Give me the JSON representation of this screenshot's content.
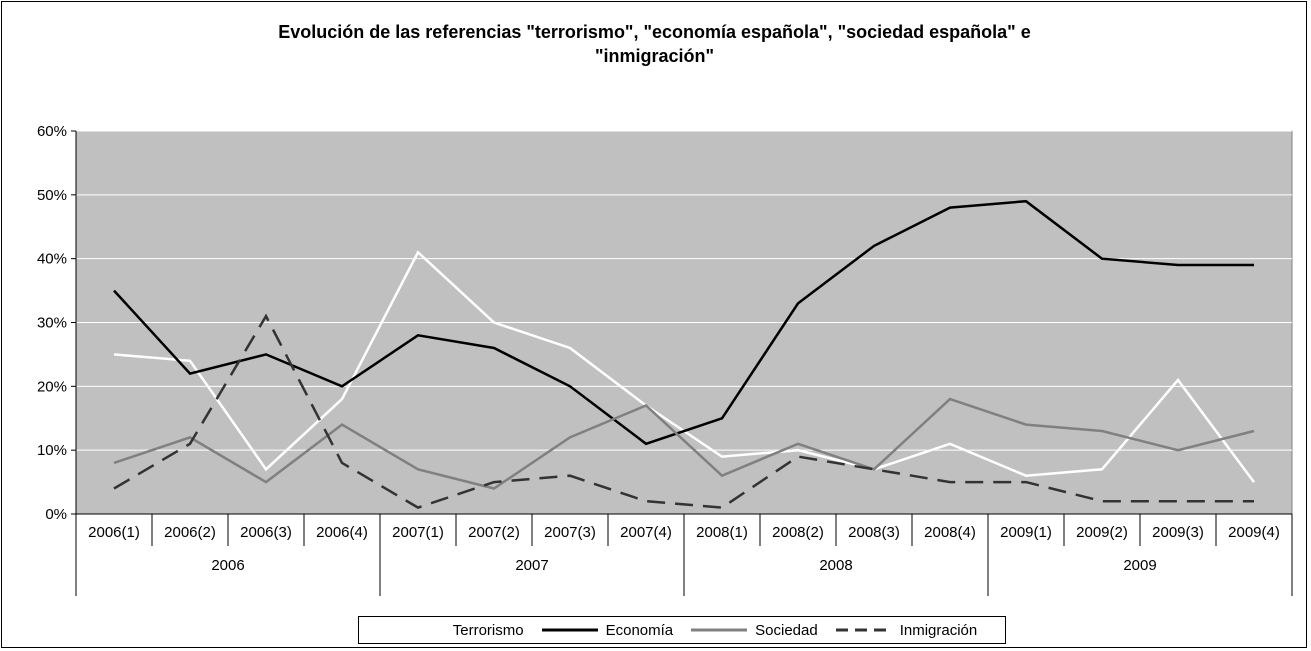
{
  "chart_data": {
    "type": "line",
    "title": "Evolución de las referencias \"terrorismo\", \"economía española\", \"sociedad española\" e \"inmigración\"",
    "title_lines": [
      "Evolución de las referencias \"terrorismo\", \"economía española\", \"sociedad española\" e",
      "\"inmigración\""
    ],
    "categories": [
      "2006(1)",
      "2006(2)",
      "2006(3)",
      "2006(4)",
      "2007(1)",
      "2007(2)",
      "2007(3)",
      "2007(4)",
      "2008(1)",
      "2008(2)",
      "2008(3)",
      "2008(4)",
      "2009(1)",
      "2009(2)",
      "2009(3)",
      "2009(4)"
    ],
    "groups": [
      {
        "label": "2006",
        "start": 0,
        "end": 3
      },
      {
        "label": "2007",
        "start": 4,
        "end": 7
      },
      {
        "label": "2008",
        "start": 8,
        "end": 11
      },
      {
        "label": "2009",
        "start": 12,
        "end": 15
      }
    ],
    "ylim": [
      0,
      0.6
    ],
    "yticks": [
      0,
      0.1,
      0.2,
      0.3,
      0.4,
      0.5,
      0.6
    ],
    "ytick_labels": [
      "0%",
      "10%",
      "20%",
      "30%",
      "40%",
      "50%",
      "60%"
    ],
    "grid": true,
    "plot_background": "#c0c0c0",
    "legend_position": "bottom",
    "series": [
      {
        "name": "Terrorismo",
        "color": "#ffffff",
        "dash": "solid",
        "values": [
          0.25,
          0.24,
          0.07,
          0.18,
          0.41,
          0.3,
          0.26,
          0.17,
          0.09,
          0.1,
          0.07,
          0.11,
          0.06,
          0.07,
          0.21,
          0.05
        ]
      },
      {
        "name": "Economía",
        "color": "#000000",
        "dash": "solid",
        "values": [
          0.35,
          0.22,
          0.25,
          0.2,
          0.28,
          0.26,
          0.2,
          0.11,
          0.15,
          0.33,
          0.42,
          0.48,
          0.49,
          0.4,
          0.39,
          0.39
        ]
      },
      {
        "name": "Sociedad",
        "color": "#808080",
        "dash": "solid",
        "values": [
          0.08,
          0.12,
          0.05,
          0.14,
          0.07,
          0.04,
          0.12,
          0.17,
          0.06,
          0.11,
          0.07,
          0.18,
          0.14,
          0.13,
          0.1,
          0.13
        ]
      },
      {
        "name": "Inmigración",
        "color": "#333333",
        "dash": "dashed",
        "values": [
          0.04,
          0.11,
          0.31,
          0.08,
          0.01,
          0.05,
          0.06,
          0.02,
          0.01,
          0.09,
          0.07,
          0.05,
          0.05,
          0.02,
          0.02,
          0.02
        ]
      }
    ]
  }
}
